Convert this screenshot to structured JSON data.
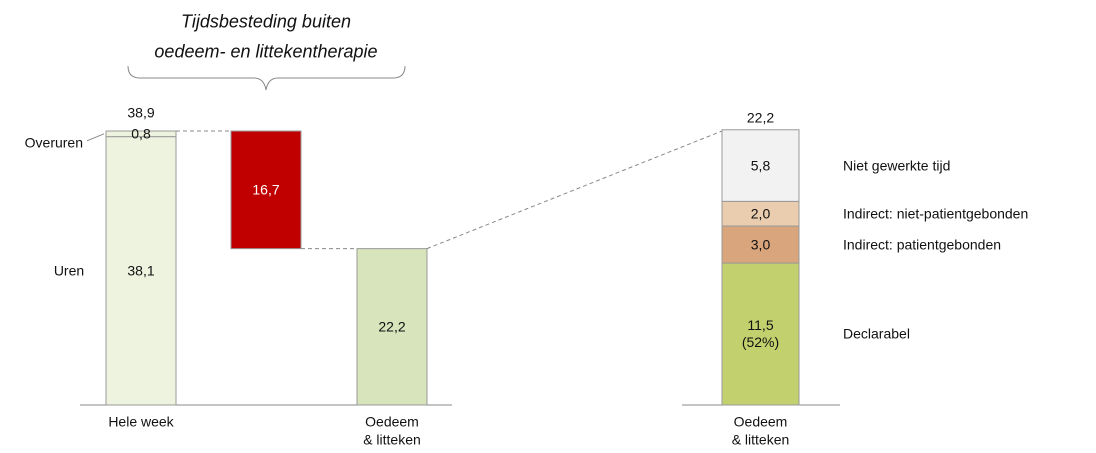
{
  "chart_data": [
    {
      "type": "waterfall",
      "annotation": [
        "Tijdsbesteding buiten",
        "oedeem- en littekentherapie"
      ],
      "bars": [
        {
          "category": [
            "Hele week"
          ],
          "names": [
            "Uren",
            "Overuren"
          ],
          "values": [
            38.1,
            0.8
          ],
          "value_labels": [
            "38,1",
            "0,8"
          ],
          "color": "#eef3e0",
          "total": 38.9,
          "total_label": "38,9"
        },
        {
          "category": null,
          "values": [
            -16.7
          ],
          "value_labels": [
            "16,7"
          ],
          "color": "#c00000"
        },
        {
          "category": [
            "Oedeem",
            "& litteken"
          ],
          "values": [
            22.2
          ],
          "value_labels": [
            "22,2"
          ],
          "color": "#d7e4bc"
        }
      ]
    },
    {
      "type": "stacked_bar",
      "category": [
        "Oedeem",
        "& litteken"
      ],
      "total": 22.2,
      "total_label": "22,2",
      "series": [
        {
          "name": "Declarabel",
          "color": "#c2d16e",
          "value": 11.5,
          "value_label": "11,5 (52%)"
        },
        {
          "name": "Indirect: patientgebonden",
          "color": "#d9a57c",
          "value": 3.0,
          "value_label": "3,0"
        },
        {
          "name": "Indirect: niet-patientgebonden",
          "color": "#e9cdae",
          "value": 2.0,
          "value_label": "2,0"
        },
        {
          "name": "Niet gewerkte tijd",
          "color": "#f2f2f2",
          "value": 5.8,
          "value_label": "5,8"
        }
      ]
    }
  ]
}
